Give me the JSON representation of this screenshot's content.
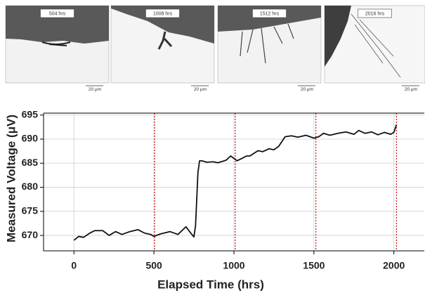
{
  "micrographs": [
    {
      "label": "504 hrs",
      "scale": "20 µm"
    },
    {
      "label": "1008 hrs",
      "scale": "20 µm"
    },
    {
      "label": "1512 hrs",
      "scale": "20 µm"
    },
    {
      "label": "2016 hrs",
      "scale": "20 µm"
    }
  ],
  "chart_data": {
    "type": "line",
    "x_label": "Elapsed Time (hrs)",
    "y_label": "Measured Voltage (μV)",
    "xlim": [
      -190,
      2190
    ],
    "ylim": [
      666.8,
      695.4
    ],
    "xticks": [
      0,
      500,
      1000,
      1500,
      2000
    ],
    "yticks": [
      670,
      675,
      680,
      685,
      690,
      695
    ],
    "grid": true,
    "events": [
      504,
      1008,
      1512,
      2016
    ],
    "event_color": "#d62020",
    "series": [
      {
        "color": "#111111",
        "x": [
          0,
          30,
          60,
          100,
          130,
          180,
          220,
          260,
          300,
          350,
          400,
          440,
          480,
          500,
          540,
          600,
          650,
          700,
          730,
          750,
          760,
          775,
          785,
          800,
          830,
          870,
          900,
          950,
          980,
          1000,
          1020,
          1050,
          1080,
          1100,
          1150,
          1180,
          1220,
          1250,
          1280,
          1300,
          1320,
          1360,
          1400,
          1450,
          1500,
          1530,
          1560,
          1600,
          1650,
          1700,
          1750,
          1780,
          1820,
          1860,
          1900,
          1940,
          1980,
          2000,
          2016
        ],
        "values": [
          669,
          669.8,
          669.6,
          670.5,
          671,
          671,
          670,
          670.8,
          670.2,
          670.8,
          671.2,
          670.5,
          670.2,
          669.8,
          670.3,
          670.8,
          670.2,
          671.8,
          670.5,
          669.7,
          672,
          683,
          685.5,
          685.5,
          685.2,
          685.3,
          685.1,
          685.6,
          686.5,
          686,
          685.5,
          686,
          686.5,
          686.5,
          687.6,
          687.4,
          688,
          687.8,
          688.5,
          689.5,
          690.5,
          690.7,
          690.4,
          690.8,
          690.2,
          690.5,
          691.2,
          690.8,
          691.2,
          691.5,
          691,
          691.8,
          691.2,
          691.5,
          690.9,
          691.4,
          691,
          691.4,
          693
        ]
      }
    ]
  }
}
